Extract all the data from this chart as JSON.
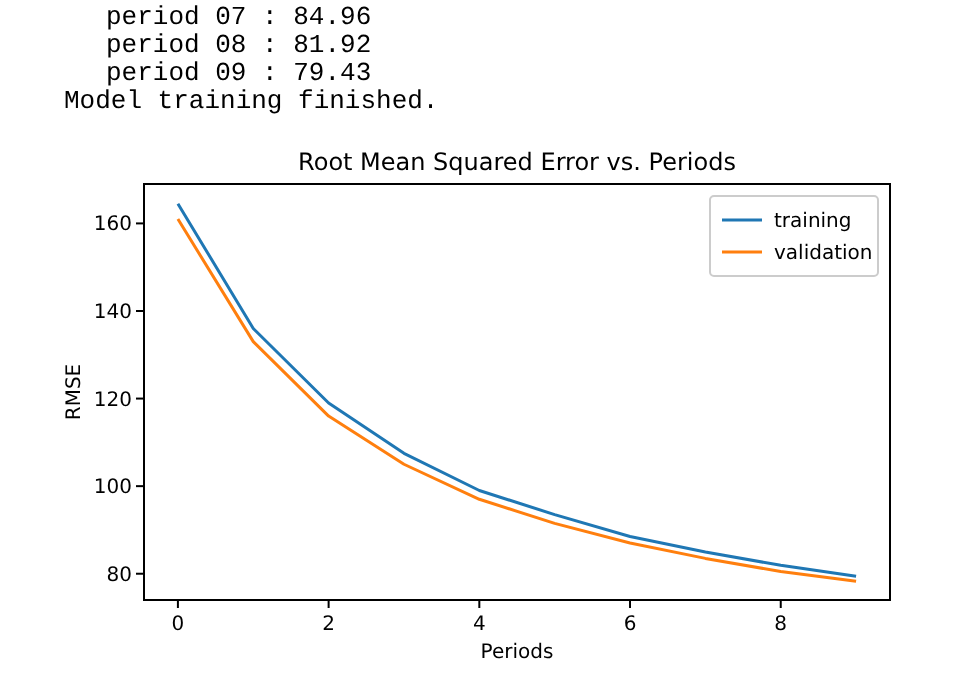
{
  "chart_data": {
    "type": "line",
    "title": "Root Mean Squared Error vs. Periods",
    "xlabel": "Periods",
    "ylabel": "RMSE",
    "annotations": [
      "period 07 : 84.96",
      "period 08 : 81.92",
      "period 09 : 79.43",
      "Model training finished."
    ],
    "x": [
      0,
      1,
      2,
      3,
      4,
      5,
      6,
      7,
      8,
      9
    ],
    "series": [
      {
        "name": "training",
        "color": "#1f77b4",
        "values": [
          164.5,
          136,
          119,
          107.5,
          99,
          93.5,
          88.5,
          84.96,
          81.92,
          79.43
        ]
      },
      {
        "name": "validation",
        "color": "#ff7f0e",
        "values": [
          161,
          133,
          116,
          105,
          97,
          91.5,
          87,
          83.5,
          80.5,
          78.3
        ]
      }
    ],
    "xlim": [
      -0.45,
      9.45
    ],
    "xticks": [
      0,
      2,
      4,
      6,
      8
    ],
    "ylim": [
      74,
      169
    ],
    "yticks": [
      80,
      100,
      120,
      140,
      160
    ],
    "legend": "top right",
    "grid": false,
    "marker": "none",
    "line_style": "solid"
  }
}
